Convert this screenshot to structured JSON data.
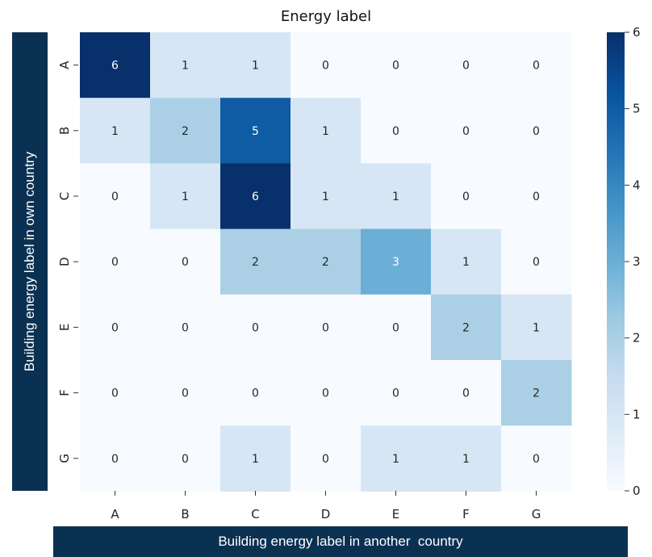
{
  "chart_data": {
    "type": "heatmap",
    "title": "Energy label",
    "xlabel": "Building energy label in another  country",
    "ylabel": "Building energy label in own country",
    "x_categories": [
      "A",
      "B",
      "C",
      "D",
      "E",
      "F",
      "G"
    ],
    "y_categories": [
      "A",
      "B",
      "C",
      "D",
      "E",
      "F",
      "G"
    ],
    "values": [
      [
        6,
        1,
        1,
        0,
        0,
        0,
        0
      ],
      [
        1,
        2,
        5,
        1,
        0,
        0,
        0
      ],
      [
        0,
        1,
        6,
        1,
        1,
        0,
        0
      ],
      [
        0,
        0,
        2,
        2,
        3,
        1,
        0
      ],
      [
        0,
        0,
        0,
        0,
        0,
        2,
        1
      ],
      [
        0,
        0,
        0,
        0,
        0,
        0,
        2
      ],
      [
        0,
        0,
        1,
        0,
        1,
        1,
        0
      ]
    ],
    "colorbar": {
      "min": 0,
      "max": 6,
      "ticks": [
        "0",
        "1",
        "2",
        "3",
        "4",
        "5",
        "6"
      ]
    },
    "colormap": "Blues"
  }
}
